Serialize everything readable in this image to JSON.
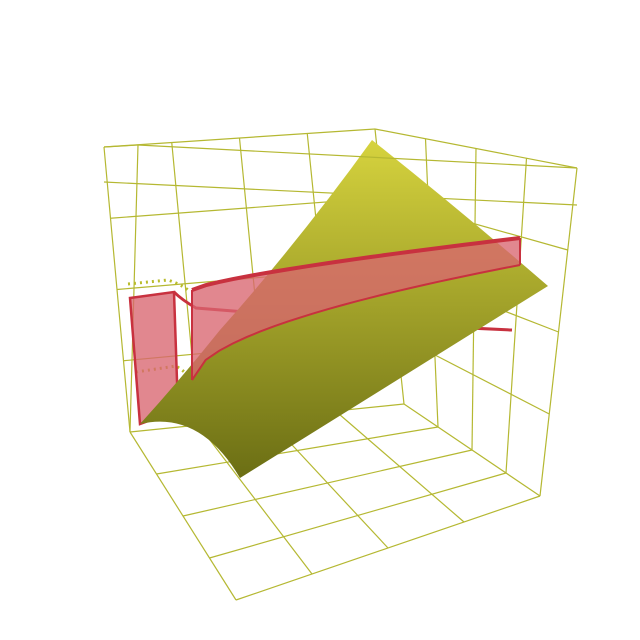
{
  "chart_data": {
    "type": "surface",
    "title": "",
    "xlabel": "",
    "ylabel": "",
    "zlabel": "",
    "axes_visible": false,
    "box": true,
    "grid": true,
    "grid_divisions": 3,
    "surface": {
      "color_top": "#d6d33e",
      "color_bottom": "#6b6e14",
      "corners_z": {
        "back_left": 0.0,
        "back_right": 1.0,
        "front_left": -0.3,
        "front_right": 0.45
      }
    },
    "ribbon": {
      "color": "#d9656f",
      "edge_color": "#c8313f",
      "opacity": 0.78,
      "path_points": 24,
      "z_top_start": 0.55,
      "z_top_end": 0.86,
      "z_bottom_start": 0.08,
      "z_bottom_end": 0.68
    },
    "colors": {
      "box_line": "#b5b832",
      "dotted_line": "#b9bc2c"
    }
  }
}
